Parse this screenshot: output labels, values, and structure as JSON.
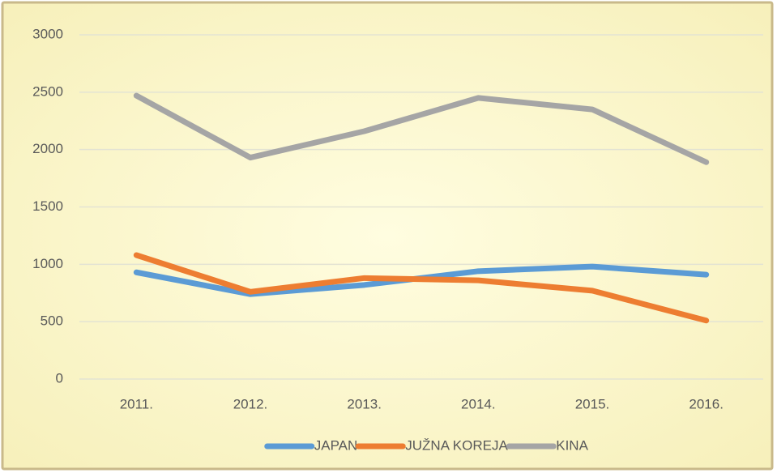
{
  "chart_data": {
    "type": "line",
    "categories": [
      "2011.",
      "2012.",
      "2013.",
      "2014.",
      "2015.",
      "2016."
    ],
    "series": [
      {
        "name": "JAPAN",
        "color": "#5b9bd5",
        "values": [
          930,
          740,
          820,
          940,
          980,
          910
        ]
      },
      {
        "name": "JUŽNA KOREJA",
        "color": "#ed7d31",
        "values": [
          1080,
          760,
          880,
          860,
          770,
          510
        ]
      },
      {
        "name": "KINA",
        "color": "#a5a5a5",
        "values": [
          2470,
          1930,
          2160,
          2450,
          2350,
          1890
        ]
      }
    ],
    "ylim": [
      0,
      3000
    ],
    "yticks": [
      0,
      500,
      1000,
      1500,
      2000,
      2500,
      3000
    ],
    "grid": true,
    "legend": "bottom"
  }
}
